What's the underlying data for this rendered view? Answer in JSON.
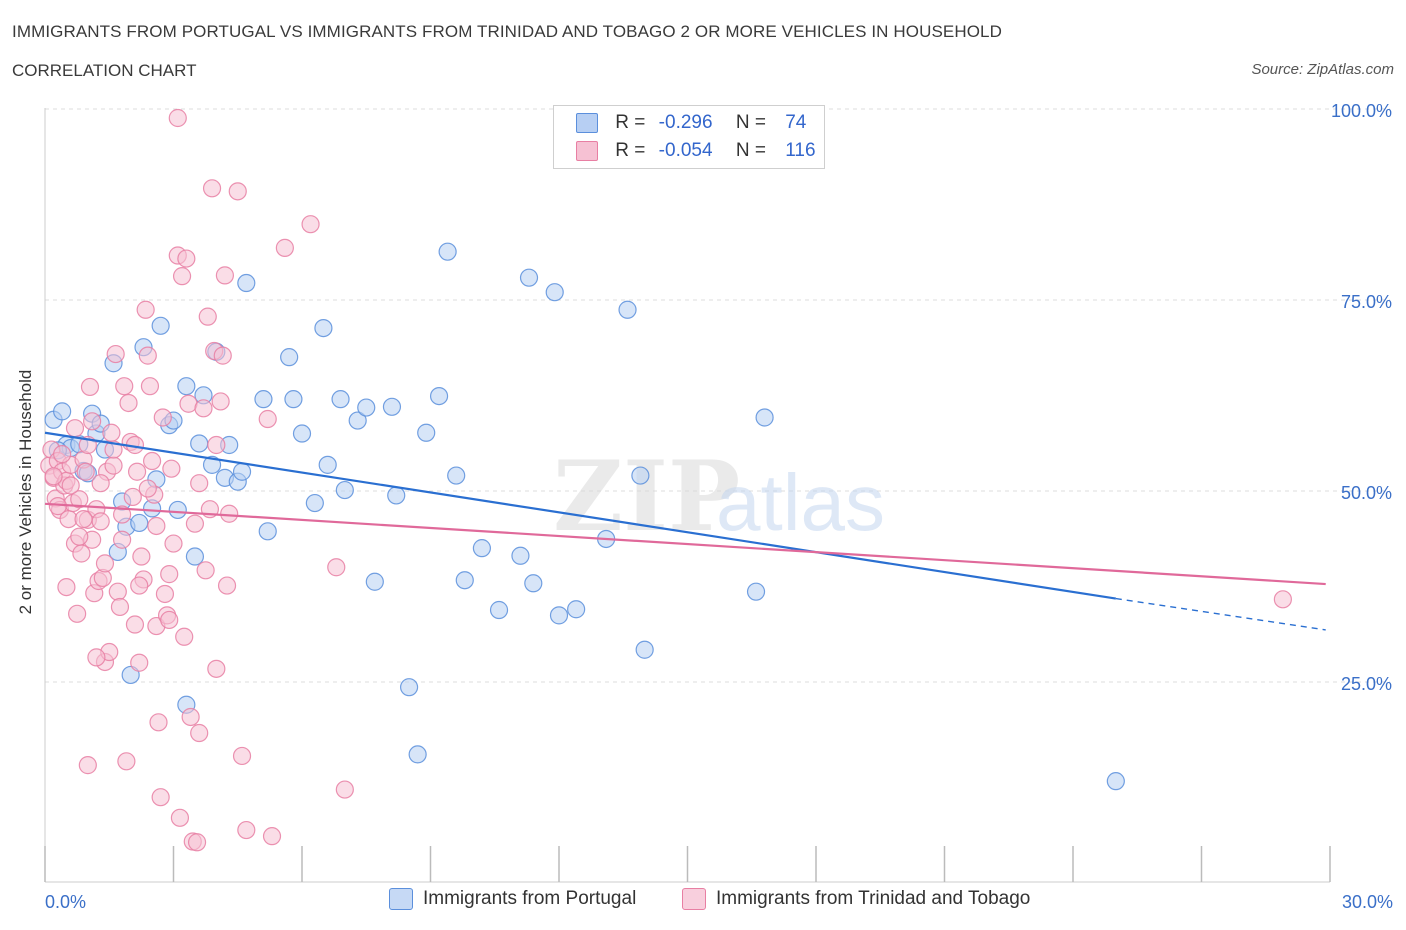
{
  "title": "IMMIGRANTS FROM PORTUGAL VS IMMIGRANTS FROM TRINIDAD AND TOBAGO 2 OR MORE VEHICLES IN HOUSEHOLD",
  "subtitle": "CORRELATION CHART",
  "source": "Source: ZipAtlas.com",
  "watermark": {
    "zip": "ZIP",
    "atlas": "atlas"
  },
  "legend": {
    "rows": [
      {
        "r_label": "R =",
        "r_value": "-0.296",
        "n_label": "N =",
        "n_value": "74"
      },
      {
        "r_label": "R =",
        "r_value": "-0.054",
        "n_label": "N =",
        "n_value": "116"
      }
    ]
  },
  "chart_data": {
    "type": "scatter",
    "ylabel": "2 or more Vehicles in Household",
    "xlim": [
      0,
      30
    ],
    "ylim": [
      0,
      100
    ],
    "x_tick_labels": [
      "0.0%",
      "30.0%"
    ],
    "y_tick_labels": [
      "25.0%",
      "50.0%",
      "75.0%",
      "100.0%"
    ],
    "y_ticks": [
      25,
      50,
      75,
      100
    ],
    "grid": true,
    "colors": {
      "portugal": "#5b8fdc",
      "trinidad": "#e87fa3",
      "portugal_fill": "#b7cff3",
      "trinidad_fill": "#f6c1d3",
      "axis_text": "#3a6fc8"
    },
    "series": [
      {
        "name": "Immigrants from Portugal",
        "color": "#5b8fdc",
        "trend": {
          "x0": 0,
          "y0": 58.8,
          "x1": 25.0,
          "y1": 37.1,
          "dash_x1": 29.9,
          "dash_y1": 33.0
        },
        "points": [
          [
            0.2,
            60.5
          ],
          [
            0.4,
            61.6
          ],
          [
            0.5,
            57.2
          ],
          [
            0.6,
            56.8
          ],
          [
            0.8,
            57.3
          ],
          [
            0.9,
            53.8
          ],
          [
            1.0,
            53.5
          ],
          [
            1.1,
            61.3
          ],
          [
            1.2,
            58.7
          ],
          [
            1.3,
            60.0
          ],
          [
            1.4,
            56.6
          ],
          [
            1.6,
            67.9
          ],
          [
            1.7,
            43.2
          ],
          [
            1.8,
            49.8
          ],
          [
            1.9,
            46.5
          ],
          [
            2.0,
            27.1
          ],
          [
            2.2,
            47.0
          ],
          [
            2.3,
            70.0
          ],
          [
            2.5,
            48.9
          ],
          [
            2.6,
            52.7
          ],
          [
            2.7,
            72.8
          ],
          [
            2.9,
            59.8
          ],
          [
            3.0,
            60.4
          ],
          [
            3.1,
            48.7
          ],
          [
            3.3,
            23.2
          ],
          [
            3.3,
            64.9
          ],
          [
            3.5,
            42.6
          ],
          [
            3.6,
            57.4
          ],
          [
            3.7,
            63.7
          ],
          [
            3.9,
            54.6
          ],
          [
            4.0,
            69.4
          ],
          [
            4.2,
            52.9
          ],
          [
            4.3,
            57.2
          ],
          [
            4.5,
            52.4
          ],
          [
            4.6,
            53.7
          ],
          [
            4.7,
            78.4
          ],
          [
            5.1,
            63.2
          ],
          [
            5.2,
            45.9
          ],
          [
            5.7,
            68.7
          ],
          [
            5.8,
            63.2
          ],
          [
            6.0,
            58.7
          ],
          [
            6.3,
            49.6
          ],
          [
            6.5,
            72.5
          ],
          [
            6.6,
            54.6
          ],
          [
            6.9,
            63.2
          ],
          [
            7.0,
            51.3
          ],
          [
            7.3,
            60.4
          ],
          [
            7.5,
            62.1
          ],
          [
            7.7,
            39.3
          ],
          [
            8.1,
            62.2
          ],
          [
            8.2,
            50.6
          ],
          [
            8.5,
            25.5
          ],
          [
            8.7,
            16.7
          ],
          [
            8.9,
            58.8
          ],
          [
            9.2,
            63.6
          ],
          [
            9.4,
            82.5
          ],
          [
            9.6,
            53.2
          ],
          [
            9.8,
            39.5
          ],
          [
            10.2,
            43.7
          ],
          [
            10.6,
            35.6
          ],
          [
            11.1,
            42.7
          ],
          [
            11.3,
            79.1
          ],
          [
            11.4,
            39.1
          ],
          [
            11.9,
            77.2
          ],
          [
            12.0,
            34.9
          ],
          [
            12.4,
            35.7
          ],
          [
            13.1,
            44.9
          ],
          [
            13.9,
            53.2
          ],
          [
            13.6,
            74.9
          ],
          [
            14.0,
            30.4
          ],
          [
            16.6,
            38.0
          ],
          [
            16.8,
            60.8
          ],
          [
            25.0,
            13.2
          ],
          [
            0.3,
            56.5
          ]
        ]
      },
      {
        "name": "Immigrants from Trinidad and Tobago",
        "color": "#e87fa3",
        "trend": {
          "x0": 0,
          "y0": 49.5,
          "x1": 29.9,
          "y1": 39.0
        },
        "points": [
          [
            0.1,
            54.5
          ],
          [
            0.15,
            56.6
          ],
          [
            0.2,
            52.9
          ],
          [
            0.25,
            50.2
          ],
          [
            0.3,
            55.1
          ],
          [
            0.35,
            48.7
          ],
          [
            0.4,
            53.7
          ],
          [
            0.45,
            51.9
          ],
          [
            0.5,
            52.5
          ],
          [
            0.55,
            47.5
          ],
          [
            0.6,
            54.6
          ],
          [
            0.65,
            49.6
          ],
          [
            0.7,
            44.3
          ],
          [
            0.75,
            35.1
          ],
          [
            0.8,
            50.1
          ],
          [
            0.85,
            43.0
          ],
          [
            0.9,
            55.3
          ],
          [
            0.95,
            53.7
          ],
          [
            1.0,
            15.3
          ],
          [
            1.0,
            47.4
          ],
          [
            1.05,
            64.8
          ],
          [
            1.1,
            60.3
          ],
          [
            1.15,
            37.8
          ],
          [
            1.2,
            48.8
          ],
          [
            1.25,
            39.4
          ],
          [
            1.3,
            47.2
          ],
          [
            1.35,
            39.8
          ],
          [
            1.4,
            28.8
          ],
          [
            1.45,
            53.7
          ],
          [
            1.5,
            30.1
          ],
          [
            1.55,
            58.8
          ],
          [
            1.6,
            54.5
          ],
          [
            1.65,
            69.1
          ],
          [
            1.7,
            38.0
          ],
          [
            1.75,
            36.0
          ],
          [
            1.8,
            44.8
          ],
          [
            1.85,
            64.9
          ],
          [
            1.9,
            15.8
          ],
          [
            1.95,
            62.7
          ],
          [
            2.0,
            57.6
          ],
          [
            2.05,
            50.4
          ],
          [
            2.1,
            33.7
          ],
          [
            2.15,
            53.7
          ],
          [
            2.2,
            28.7
          ],
          [
            2.25,
            42.6
          ],
          [
            2.3,
            39.6
          ],
          [
            2.35,
            74.9
          ],
          [
            2.4,
            68.9
          ],
          [
            2.45,
            64.9
          ],
          [
            2.5,
            55.1
          ],
          [
            2.55,
            50.7
          ],
          [
            2.6,
            33.5
          ],
          [
            2.65,
            20.9
          ],
          [
            2.7,
            11.1
          ],
          [
            2.75,
            60.8
          ],
          [
            2.8,
            37.7
          ],
          [
            2.85,
            34.9
          ],
          [
            2.9,
            40.3
          ],
          [
            2.95,
            54.1
          ],
          [
            3.0,
            44.3
          ],
          [
            3.1,
            82.0
          ],
          [
            3.15,
            8.4
          ],
          [
            3.2,
            79.3
          ],
          [
            3.25,
            32.1
          ],
          [
            3.3,
            81.6
          ],
          [
            3.35,
            62.6
          ],
          [
            3.4,
            21.6
          ],
          [
            3.45,
            5.3
          ],
          [
            3.5,
            46.9
          ],
          [
            3.55,
            5.2
          ],
          [
            3.6,
            19.5
          ],
          [
            3.7,
            62.0
          ],
          [
            3.75,
            40.8
          ],
          [
            3.8,
            74.0
          ],
          [
            3.85,
            48.8
          ],
          [
            3.9,
            90.8
          ],
          [
            3.95,
            69.5
          ],
          [
            4.0,
            57.2
          ],
          [
            4.1,
            62.9
          ],
          [
            4.15,
            68.9
          ],
          [
            4.2,
            79.4
          ],
          [
            4.25,
            38.8
          ],
          [
            4.3,
            48.2
          ],
          [
            4.5,
            90.4
          ],
          [
            4.6,
            16.5
          ],
          [
            4.7,
            6.8
          ],
          [
            5.2,
            60.6
          ],
          [
            5.3,
            6.0
          ],
          [
            5.6,
            83.0
          ],
          [
            6.2,
            86.1
          ],
          [
            6.8,
            41.2
          ],
          [
            7.0,
            12.1
          ],
          [
            1.0,
            57.2
          ],
          [
            1.3,
            52.2
          ],
          [
            0.3,
            49.2
          ],
          [
            0.6,
            51.9
          ],
          [
            0.9,
            47.5
          ],
          [
            1.1,
            44.8
          ],
          [
            1.6,
            56.6
          ],
          [
            1.8,
            48.1
          ],
          [
            2.1,
            57.2
          ],
          [
            2.4,
            51.5
          ],
          [
            3.1,
            100.0
          ],
          [
            0.5,
            38.6
          ],
          [
            0.7,
            59.4
          ],
          [
            1.2,
            29.4
          ],
          [
            2.9,
            34.3
          ],
          [
            4.0,
            27.9
          ],
          [
            0.2,
            53.1
          ],
          [
            0.4,
            56.0
          ],
          [
            1.4,
            41.7
          ],
          [
            2.6,
            46.6
          ],
          [
            3.6,
            52.2
          ],
          [
            28.9,
            37.0
          ],
          [
            0.8,
            45.2
          ],
          [
            2.2,
            38.8
          ]
        ]
      }
    ]
  },
  "bottom_legend": [
    "Immigrants from Portugal",
    "Immigrants from Trinidad and Tobago"
  ]
}
